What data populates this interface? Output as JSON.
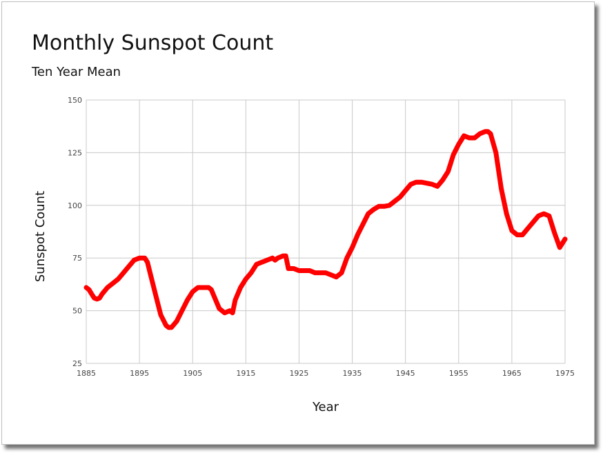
{
  "chart_data": {
    "type": "line",
    "title": "Monthly Sunspot Count",
    "subtitle": "Ten Year Mean",
    "xlabel": "Year",
    "ylabel": "Sunspot Count",
    "xlim": [
      1885,
      1975
    ],
    "ylim": [
      25,
      150
    ],
    "x_ticks": [
      1885,
      1895,
      1905,
      1915,
      1925,
      1935,
      1945,
      1955,
      1965,
      1975
    ],
    "y_ticks": [
      25,
      50,
      75,
      100,
      125,
      150
    ],
    "grid": true,
    "legend": "none",
    "series": [
      {
        "color": "#ff0000",
        "x": [
          1885,
          1885.5,
          1886,
          1886.5,
          1887,
          1887.5,
          1888,
          1889,
          1890,
          1891,
          1892,
          1893,
          1894,
          1895,
          1896,
          1896.5,
          1897,
          1898,
          1899,
          1900,
          1900.5,
          1901,
          1902,
          1903,
          1904,
          1905,
          1906,
          1907,
          1908,
          1908.5,
          1909,
          1910,
          1911,
          1912,
          1912.5,
          1913,
          1914,
          1915,
          1916,
          1917,
          1918,
          1919,
          1920,
          1920.5,
          1921,
          1922,
          1922.5,
          1923,
          1924,
          1925,
          1926,
          1927,
          1928,
          1929,
          1930,
          1931,
          1932,
          1933,
          1934,
          1935,
          1936,
          1937,
          1938,
          1939,
          1940,
          1941,
          1942,
          1943,
          1944,
          1945,
          1946,
          1947,
          1948,
          1949,
          1950,
          1951,
          1952,
          1953,
          1954,
          1955,
          1956,
          1957,
          1958,
          1959,
          1960,
          1960.5,
          1961,
          1962,
          1963,
          1964,
          1965,
          1966,
          1967,
          1968,
          1969,
          1970,
          1971,
          1972,
          1973,
          1974,
          1975
        ],
        "values": [
          61,
          60,
          58,
          56,
          55.5,
          56,
          58,
          61,
          63,
          65,
          68,
          71,
          74,
          75,
          75,
          73,
          68,
          58,
          48,
          43,
          42,
          42,
          45,
          50,
          55,
          59,
          61,
          61,
          61,
          60,
          57,
          51,
          49,
          50,
          49,
          55,
          61,
          65,
          68,
          72,
          73,
          74,
          75,
          74,
          75,
          76,
          76,
          70,
          70,
          69,
          69,
          69,
          68,
          68,
          68,
          67,
          66,
          68,
          75,
          80,
          86,
          91,
          96,
          98,
          99.5,
          99.5,
          100,
          102,
          104,
          107,
          110,
          111,
          111,
          110.5,
          110,
          109,
          112,
          116,
          124,
          129,
          133,
          132,
          132,
          134,
          135,
          135,
          134,
          125,
          108,
          96,
          88,
          86,
          86,
          89,
          92,
          95,
          96,
          95,
          87,
          80,
          84
        ]
      }
    ]
  }
}
